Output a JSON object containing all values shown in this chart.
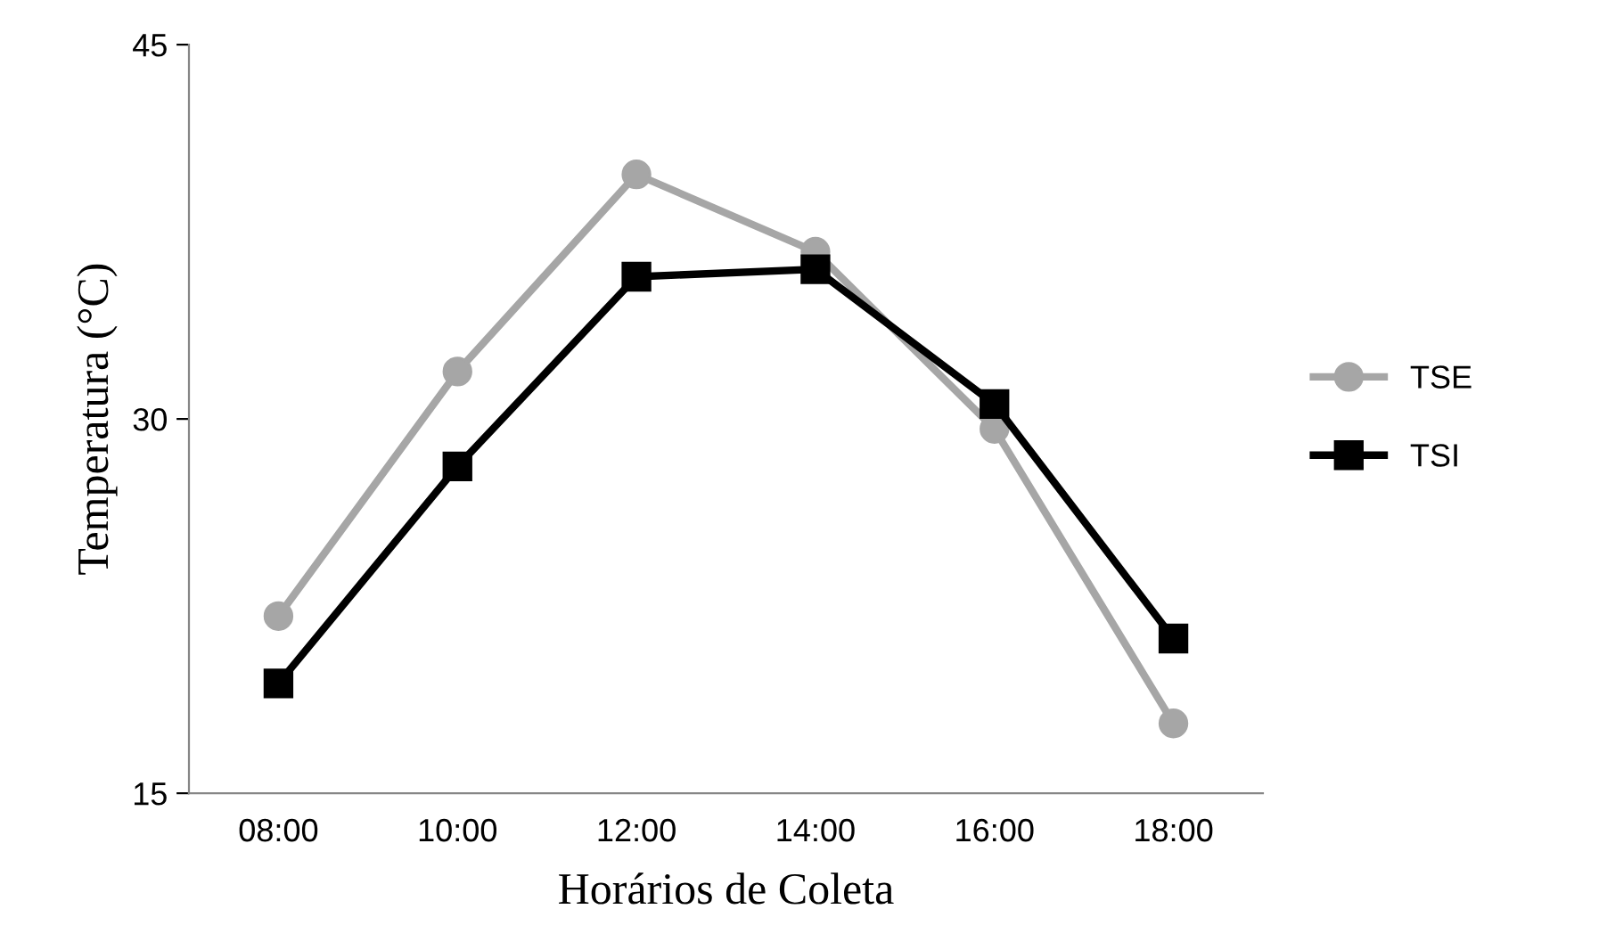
{
  "chart_data": {
    "type": "line",
    "xlabel": "Horários de Coleta",
    "ylabel": "Temperatura (°C)",
    "categories": [
      "08:00",
      "10:00",
      "12:00",
      "14:00",
      "16:00",
      "18:00"
    ],
    "series": [
      {
        "name": "TSE",
        "color": "#a6a6a6",
        "marker": "circle",
        "values": [
          22.1,
          31.9,
          39.8,
          36.7,
          29.6,
          17.8
        ]
      },
      {
        "name": "TSI",
        "color": "#000000",
        "marker": "square",
        "values": [
          19.4,
          28.1,
          35.7,
          36.0,
          30.6,
          21.2
        ]
      }
    ],
    "ylim": [
      15,
      45
    ],
    "yticks": [
      15,
      30,
      45
    ],
    "grid": false,
    "legend": "right",
    "line_style": "solid"
  }
}
